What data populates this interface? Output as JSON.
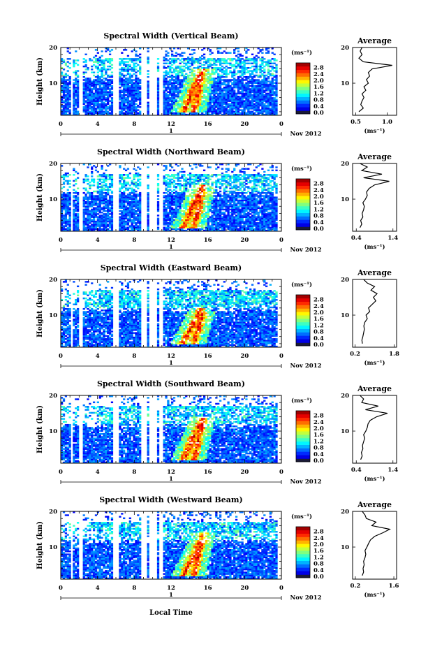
{
  "figure": {
    "xlabel": "Local Time",
    "month_label": "Nov 2012",
    "day_label": "1",
    "ylabel": "Height (km)",
    "unit_label": "(ms⁻¹)",
    "avg_title": "Average",
    "avg_xlabel": "(ms⁻¹)"
  },
  "chart_data": [
    {
      "type": "heatmap",
      "title": "Spectral Width (Vertical Beam)",
      "x_ticks": [
        "0",
        "4",
        "8",
        "12",
        "16",
        "20",
        "0"
      ],
      "y_ticks": [
        "10",
        "20"
      ],
      "xlim": [
        0,
        24
      ],
      "ylim": [
        1,
        20
      ],
      "colorbar_ticks": [
        "0.0",
        "0.4",
        "0.8",
        "1.2",
        "1.6",
        "2.0",
        "2.4",
        "2.8"
      ],
      "colorbar_range": [
        0,
        3.0
      ],
      "data_gaps_hours": [
        [
          1.0,
          1.3
        ],
        [
          2.0,
          2.5
        ],
        [
          5.6,
          6.3
        ],
        [
          8.7,
          9.3
        ],
        [
          9.6,
          10.4
        ],
        [
          10.8,
          11.2
        ]
      ],
      "trough_top_km": 16,
      "features": [
        {
          "name": "high-width band 1",
          "start_hour": 13.3,
          "end_hour": 15.3,
          "start_km": 2,
          "end_km": 13
        },
        {
          "name": "high-width band 2",
          "start_hour": 14.5,
          "end_hour": 15.5,
          "start_km": 2,
          "end_km": 14
        }
      ],
      "average_profile": {
        "x_ticks": [
          "0.5",
          "1.0"
        ],
        "xlim": [
          0.45,
          1.15
        ],
        "y_ticks": [
          "10",
          "20"
        ],
        "height_km": [
          2,
          3,
          4,
          5,
          6,
          7,
          8,
          9,
          10,
          11,
          12,
          13,
          14,
          15,
          16,
          17,
          18,
          19,
          20
        ],
        "values": [
          0.55,
          0.62,
          0.58,
          0.6,
          0.63,
          0.6,
          0.66,
          0.63,
          0.7,
          0.67,
          0.72,
          0.7,
          0.76,
          1.08,
          0.62,
          0.55,
          0.6,
          0.57,
          0.6
        ]
      }
    },
    {
      "type": "heatmap",
      "title": "Spectral Width (Northward Beam)",
      "x_ticks": [
        "0",
        "4",
        "8",
        "12",
        "16",
        "20",
        "0"
      ],
      "y_ticks": [
        "10",
        "20"
      ],
      "xlim": [
        0,
        24
      ],
      "ylim": [
        1,
        20
      ],
      "colorbar_ticks": [
        "0.0",
        "0.4",
        "0.8",
        "1.2",
        "1.6",
        "2.0",
        "2.4",
        "2.8"
      ],
      "colorbar_range": [
        0,
        3.0
      ],
      "data_gaps_hours": [
        [
          1.0,
          1.3
        ],
        [
          2.0,
          2.5
        ],
        [
          5.6,
          6.3
        ],
        [
          8.7,
          9.3
        ],
        [
          9.6,
          10.4
        ],
        [
          10.8,
          11.2
        ]
      ],
      "trough_top_km": 16,
      "features": [
        {
          "name": "high-width band 1",
          "start_hour": 13.3,
          "end_hour": 15.3,
          "start_km": 2,
          "end_km": 13
        },
        {
          "name": "high-width band 2",
          "start_hour": 14.5,
          "end_hour": 15.5,
          "start_km": 2,
          "end_km": 14
        }
      ],
      "average_profile": {
        "x_ticks": [
          "0.4",
          "1.4"
        ],
        "xlim": [
          0.3,
          1.5
        ],
        "y_ticks": [
          "10",
          "20"
        ],
        "height_km": [
          2,
          3,
          4,
          5,
          6,
          7,
          8,
          9,
          10,
          11,
          12,
          13,
          14,
          15,
          16,
          17,
          18,
          19,
          20
        ],
        "values": [
          0.5,
          0.55,
          0.52,
          0.58,
          0.56,
          0.6,
          0.62,
          0.58,
          0.65,
          0.7,
          0.68,
          0.75,
          0.9,
          1.3,
          0.6,
          1.1,
          0.55,
          0.7,
          0.5
        ]
      }
    },
    {
      "type": "heatmap",
      "title": "Spectral Width (Eastward Beam)",
      "x_ticks": [
        "0",
        "4",
        "8",
        "12",
        "16",
        "20",
        "0"
      ],
      "y_ticks": [
        "10",
        "20"
      ],
      "xlim": [
        0,
        24
      ],
      "ylim": [
        1,
        20
      ],
      "colorbar_ticks": [
        "0.0",
        "0.4",
        "0.8",
        "1.2",
        "1.6",
        "2.0",
        "2.4",
        "2.8"
      ],
      "colorbar_range": [
        0,
        3.0
      ],
      "data_gaps_hours": [
        [
          1.0,
          1.3
        ],
        [
          2.0,
          2.5
        ],
        [
          5.6,
          6.3
        ],
        [
          8.7,
          9.3
        ],
        [
          9.6,
          10.4
        ],
        [
          10.8,
          11.2
        ]
      ],
      "trough_top_km": 13,
      "features": [
        {
          "name": "high-width band 1",
          "start_hour": 13.3,
          "end_hour": 15.3,
          "start_km": 2,
          "end_km": 12
        },
        {
          "name": "high-width band 2",
          "start_hour": 14.5,
          "end_hour": 15.5,
          "start_km": 2,
          "end_km": 11
        }
      ],
      "average_profile": {
        "x_ticks": [
          "0.2",
          "1.8"
        ],
        "xlim": [
          0.1,
          1.9
        ],
        "y_ticks": [
          "10",
          "20"
        ],
        "height_km": [
          2,
          3,
          4,
          5,
          6,
          7,
          8,
          9,
          10,
          11,
          12,
          13,
          14,
          15,
          16,
          17,
          18,
          19,
          20
        ],
        "values": [
          0.5,
          0.48,
          0.52,
          0.55,
          0.58,
          0.56,
          0.6,
          0.7,
          0.65,
          0.8,
          0.75,
          0.9,
          1.05,
          0.95,
          1.1,
          0.85,
          1.0,
          0.7,
          0.55
        ]
      }
    },
    {
      "type": "heatmap",
      "title": "Spectral Width (Southward Beam)",
      "x_ticks": [
        "0",
        "4",
        "8",
        "12",
        "16",
        "20",
        "0"
      ],
      "y_ticks": [
        "10",
        "20"
      ],
      "xlim": [
        0,
        24
      ],
      "ylim": [
        1,
        20
      ],
      "colorbar_ticks": [
        "0.0",
        "0.4",
        "0.8",
        "1.2",
        "1.6",
        "2.0",
        "2.4",
        "2.8"
      ],
      "colorbar_range": [
        0,
        3.0
      ],
      "data_gaps_hours": [
        [
          1.0,
          1.3
        ],
        [
          2.0,
          2.5
        ],
        [
          5.6,
          6.3
        ],
        [
          8.7,
          9.3
        ],
        [
          9.6,
          10.4
        ],
        [
          10.8,
          11.2
        ]
      ],
      "trough_top_km": 16,
      "features": [
        {
          "name": "high-width band 1",
          "start_hour": 13.3,
          "end_hour": 15.3,
          "start_km": 2,
          "end_km": 13
        },
        {
          "name": "high-width band 2",
          "start_hour": 14.5,
          "end_hour": 15.5,
          "start_km": 2,
          "end_km": 14
        }
      ],
      "average_profile": {
        "x_ticks": [
          "0.4",
          "1.4"
        ],
        "xlim": [
          0.3,
          1.5
        ],
        "y_ticks": [
          "10",
          "20"
        ],
        "height_km": [
          2,
          3,
          4,
          5,
          6,
          7,
          8,
          9,
          10,
          11,
          12,
          13,
          14,
          15,
          16,
          17,
          18,
          19,
          20
        ],
        "values": [
          0.52,
          0.56,
          0.54,
          0.58,
          0.57,
          0.6,
          0.63,
          0.6,
          0.66,
          0.7,
          0.72,
          0.78,
          0.95,
          1.25,
          0.65,
          1.0,
          0.55,
          0.6,
          0.5
        ]
      }
    },
    {
      "type": "heatmap",
      "title": "Spectral Width (Westward Beam)",
      "x_ticks": [
        "0",
        "4",
        "8",
        "12",
        "16",
        "20",
        "0"
      ],
      "y_ticks": [
        "10",
        "20"
      ],
      "xlim": [
        0,
        24
      ],
      "ylim": [
        1,
        20
      ],
      "colorbar_ticks": [
        "0.0",
        "0.4",
        "0.8",
        "1.2",
        "1.6",
        "2.0",
        "2.4",
        "2.8"
      ],
      "colorbar_range": [
        0,
        3.0
      ],
      "data_gaps_hours": [
        [
          1.0,
          1.3
        ],
        [
          2.0,
          2.5
        ],
        [
          5.6,
          6.3
        ],
        [
          8.7,
          9.3
        ],
        [
          9.6,
          10.4
        ],
        [
          10.8,
          11.2
        ]
      ],
      "trough_top_km": 14,
      "features": [
        {
          "name": "high-width band 1",
          "start_hour": 13.3,
          "end_hour": 15.3,
          "start_km": 2,
          "end_km": 12
        },
        {
          "name": "high-width band 2",
          "start_hour": 14.5,
          "end_hour": 15.5,
          "start_km": 2,
          "end_km": 14
        }
      ],
      "average_profile": {
        "x_ticks": [
          "0.2",
          "1.6"
        ],
        "xlim": [
          0.1,
          1.7
        ],
        "y_ticks": [
          "10",
          "20"
        ],
        "height_km": [
          2,
          3,
          4,
          5,
          6,
          7,
          8,
          9,
          10,
          11,
          12,
          13,
          14,
          15,
          16,
          17,
          18,
          19,
          20
        ],
        "values": [
          0.45,
          0.5,
          0.48,
          0.52,
          0.5,
          0.55,
          0.58,
          0.55,
          0.62,
          0.68,
          0.75,
          0.9,
          1.2,
          1.45,
          0.8,
          0.95,
          0.6,
          0.55,
          0.45
        ]
      }
    }
  ]
}
